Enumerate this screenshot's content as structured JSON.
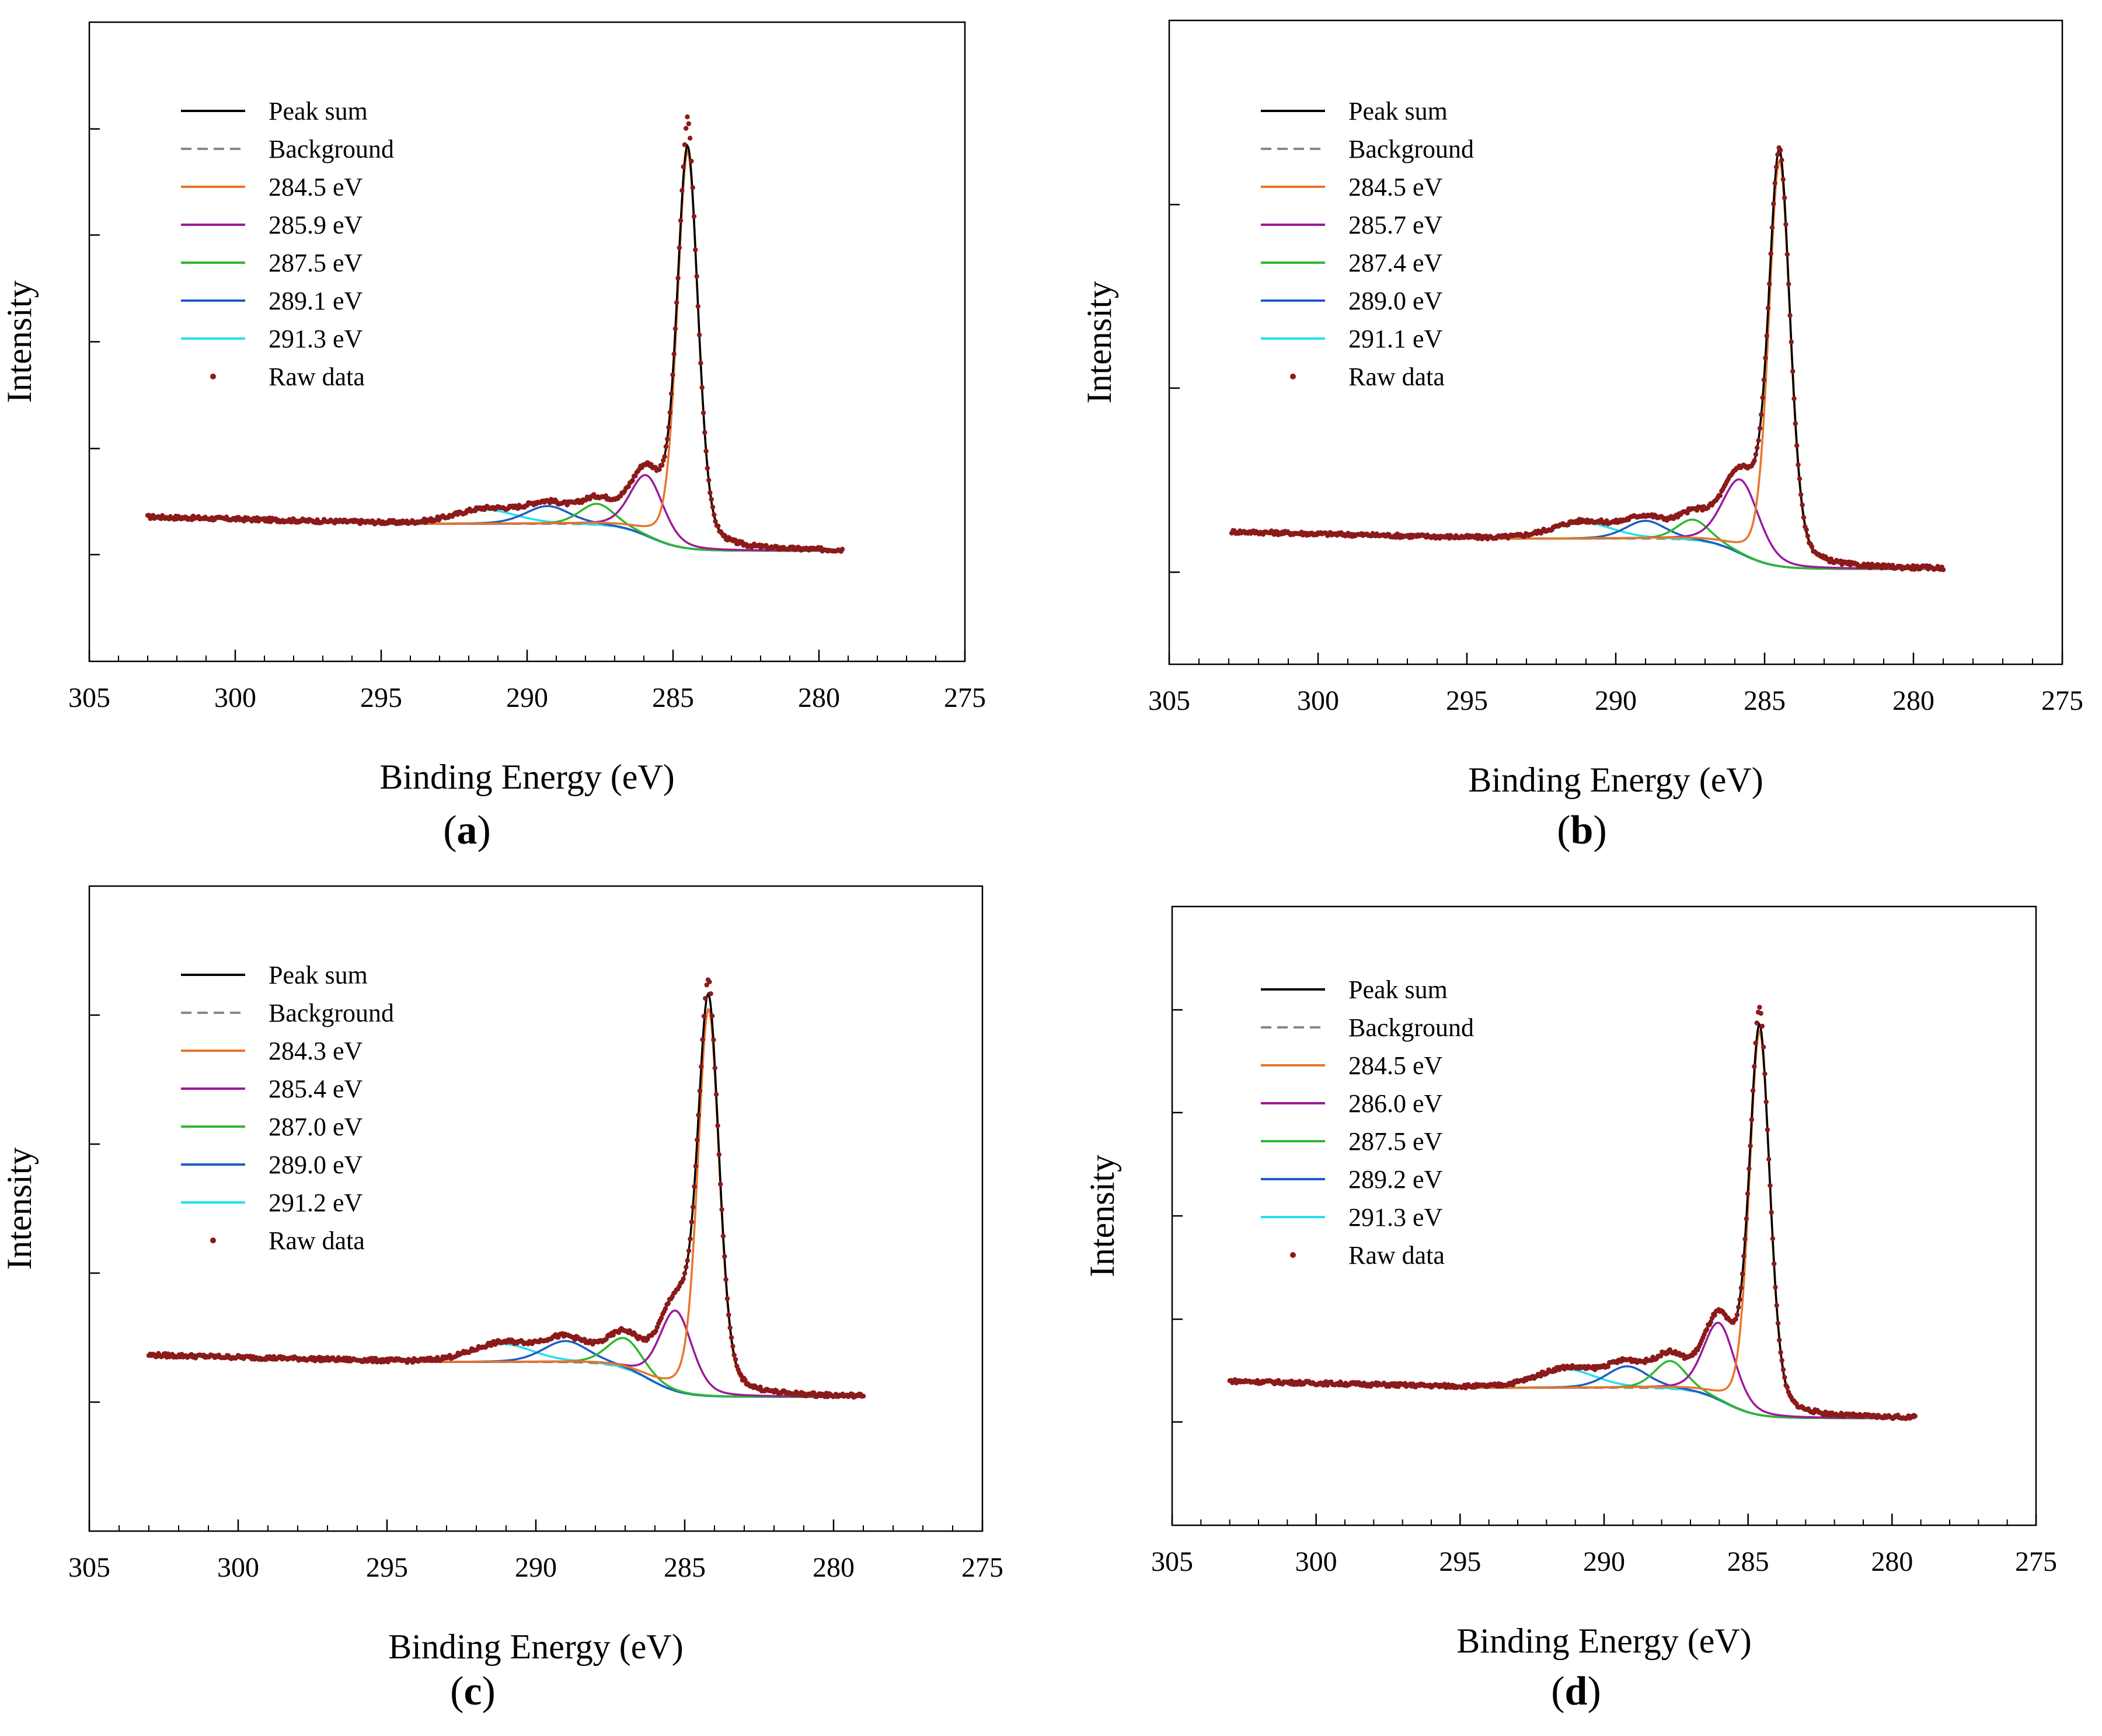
{
  "colors": {
    "peak_sum": "#000000",
    "background": "#888888",
    "c1": "#E8742A",
    "c2": "#9C1A98",
    "c3": "#2EB82E",
    "c4": "#1A5EC8",
    "c5": "#22E0F0",
    "raw": "#8B1A1A",
    "axis": "#000000"
  },
  "chart_data": [
    {
      "type": "line",
      "panel_label": "a",
      "xlabel": "Binding Energy (eV)",
      "ylabel": "Intensity",
      "xlim": [
        305,
        275
      ],
      "ylim": [
        0,
        1.0
      ],
      "x_ticks": [
        305,
        300,
        295,
        290,
        285,
        280,
        275
      ],
      "x_minor_step": 1,
      "y_major_ticks": [
        0.167,
        0.333,
        0.5,
        0.667,
        0.833
      ],
      "data_range": [
        303.0,
        279.2
      ],
      "background": {
        "left": 0.215,
        "right": 0.173,
        "mid": 285.8,
        "width": 0.55
      },
      "components": [
        {
          "name": "Peak sum",
          "kind": "sum",
          "color_key": "peak_sum"
        },
        {
          "name": "Background",
          "kind": "background",
          "color_key": "background"
        },
        {
          "name": "284.5 eV",
          "kind": "peak",
          "plot_center": 284.5,
          "amp": 0.62,
          "fwhm": 0.85,
          "color_key": "c1"
        },
        {
          "name": "285.9 eV",
          "kind": "peak",
          "plot_center": 285.9,
          "amp": 0.095,
          "fwhm": 1.35,
          "color_key": "c2"
        },
        {
          "name": "287.5 eV",
          "kind": "peak",
          "plot_center": 287.6,
          "amp": 0.033,
          "fwhm": 1.4,
          "color_key": "c3"
        },
        {
          "name": "289.1 eV",
          "kind": "peak",
          "plot_center": 289.3,
          "amp": 0.028,
          "fwhm": 1.8,
          "color_key": "c4"
        },
        {
          "name": "291.3 eV",
          "kind": "peak",
          "plot_center": 291.4,
          "amp": 0.022,
          "fwhm": 2.5,
          "color_key": "c5"
        },
        {
          "name": "Raw data",
          "kind": "raw",
          "color_key": "raw",
          "peak_overshoot": 0.045
        }
      ]
    },
    {
      "type": "line",
      "panel_label": "b",
      "xlabel": "Binding Energy (eV)",
      "ylabel": "Intensity",
      "xlim": [
        305,
        275
      ],
      "ylim": [
        0,
        1.0
      ],
      "x_ticks": [
        305,
        300,
        295,
        290,
        285,
        280,
        275
      ],
      "x_minor_step": 1,
      "y_major_ticks": [
        0.143,
        0.429,
        0.714
      ],
      "data_range": [
        302.9,
        279.0
      ],
      "background": {
        "left": 0.195,
        "right": 0.148,
        "mid": 285.8,
        "width": 0.55
      },
      "components": [
        {
          "name": "Peak sum",
          "kind": "sum",
          "color_key": "peak_sum"
        },
        {
          "name": "Background",
          "kind": "background",
          "color_key": "background"
        },
        {
          "name": "284.5 eV",
          "kind": "peak",
          "plot_center": 284.5,
          "amp": 0.63,
          "fwhm": 0.85,
          "color_key": "c1"
        },
        {
          "name": "285.7 eV",
          "kind": "peak",
          "plot_center": 285.8,
          "amp": 0.115,
          "fwhm": 1.45,
          "color_key": "c2"
        },
        {
          "name": "287.4 eV",
          "kind": "peak",
          "plot_center": 287.4,
          "amp": 0.032,
          "fwhm": 1.3,
          "color_key": "c3"
        },
        {
          "name": "289.0 eV",
          "kind": "peak",
          "plot_center": 289.0,
          "amp": 0.028,
          "fwhm": 1.6,
          "color_key": "c4"
        },
        {
          "name": "291.1 eV",
          "kind": "peak",
          "plot_center": 291.1,
          "amp": 0.025,
          "fwhm": 2.4,
          "color_key": "c5"
        },
        {
          "name": "Raw data",
          "kind": "raw",
          "color_key": "raw",
          "peak_overshoot": 0.0
        }
      ]
    },
    {
      "type": "line",
      "panel_label": "c",
      "xlabel": "Binding Energy (eV)",
      "ylabel": "Intensity",
      "xlim": [
        305,
        275
      ],
      "ylim": [
        0,
        1.0
      ],
      "x_ticks": [
        305,
        300,
        295,
        290,
        285,
        280,
        275
      ],
      "x_minor_step": 1,
      "y_major_ticks": [
        0.2,
        0.4,
        0.6,
        0.8
      ],
      "data_range": [
        303.0,
        279.0
      ],
      "background": {
        "left": 0.262,
        "right": 0.208,
        "mid": 286.2,
        "width": 0.55
      },
      "components": [
        {
          "name": "Peak sum",
          "kind": "sum",
          "color_key": "peak_sum"
        },
        {
          "name": "Background",
          "kind": "background",
          "color_key": "background"
        },
        {
          "name": "284.3 eV",
          "kind": "peak",
          "plot_center": 284.2,
          "amp": 0.6,
          "fwhm": 0.85,
          "color_key": "c1"
        },
        {
          "name": "285.4 eV",
          "kind": "peak",
          "plot_center": 285.3,
          "amp": 0.125,
          "fwhm": 1.3,
          "color_key": "c2"
        },
        {
          "name": "287.0 eV",
          "kind": "peak",
          "plot_center": 287.0,
          "amp": 0.047,
          "fwhm": 1.4,
          "color_key": "c3"
        },
        {
          "name": "289.0 eV",
          "kind": "peak",
          "plot_center": 289.0,
          "amp": 0.033,
          "fwhm": 1.8,
          "color_key": "c4"
        },
        {
          "name": "291.2 eV",
          "kind": "peak",
          "plot_center": 291.1,
          "amp": 0.028,
          "fwhm": 2.4,
          "color_key": "c5"
        },
        {
          "name": "Raw data",
          "kind": "raw",
          "color_key": "raw",
          "peak_overshoot": 0.025
        }
      ]
    },
    {
      "type": "line",
      "panel_label": "d",
      "xlabel": "Binding Energy (eV)",
      "ylabel": "Intensity",
      "xlim": [
        305,
        275
      ],
      "ylim": [
        0,
        1.0
      ],
      "x_ticks": [
        305,
        300,
        295,
        290,
        285,
        280,
        275
      ],
      "x_minor_step": 1,
      "y_major_ticks": [
        0.167,
        0.333,
        0.5,
        0.667,
        0.833
      ],
      "data_range": [
        303.0,
        279.2
      ],
      "background": {
        "left": 0.222,
        "right": 0.173,
        "mid": 285.8,
        "width": 0.55
      },
      "components": [
        {
          "name": "Peak sum",
          "kind": "sum",
          "color_key": "peak_sum"
        },
        {
          "name": "Background",
          "kind": "background",
          "color_key": "background"
        },
        {
          "name": "284.5 eV",
          "kind": "peak",
          "plot_center": 284.6,
          "amp": 0.62,
          "fwhm": 0.85,
          "color_key": "c1"
        },
        {
          "name": "286.0 eV",
          "kind": "peak",
          "plot_center": 286.0,
          "amp": 0.125,
          "fwhm": 1.3,
          "color_key": "c2"
        },
        {
          "name": "287.5 eV",
          "kind": "peak",
          "plot_center": 287.7,
          "amp": 0.045,
          "fwhm": 1.3,
          "color_key": "c3"
        },
        {
          "name": "289.2 eV",
          "kind": "peak",
          "plot_center": 289.2,
          "amp": 0.035,
          "fwhm": 1.7,
          "color_key": "c4"
        },
        {
          "name": "291.3 eV",
          "kind": "peak",
          "plot_center": 291.3,
          "amp": 0.03,
          "fwhm": 2.4,
          "color_key": "c5"
        },
        {
          "name": "Raw data",
          "kind": "raw",
          "color_key": "raw",
          "peak_overshoot": 0.03
        }
      ]
    }
  ]
}
